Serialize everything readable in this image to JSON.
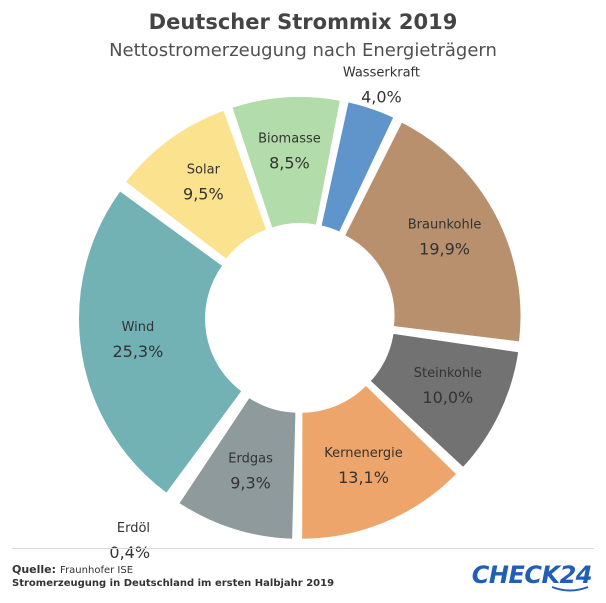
{
  "chart_data": {
    "type": "pie",
    "donut": true,
    "title": "Deutscher Strommix 2019",
    "subtitle": "Nettostromerzeugung nach Energieträgern",
    "slices": [
      {
        "label": "Braunkohle",
        "value": 19.9,
        "display": "19,9%",
        "color": "#b8906e"
      },
      {
        "label": "Steinkohle",
        "value": 10.0,
        "display": "10,0%",
        "color": "#727272"
      },
      {
        "label": "Kernenergie",
        "value": 13.1,
        "display": "13,1%",
        "color": "#eda56b"
      },
      {
        "label": "Erdgas",
        "value": 9.3,
        "display": "9,3%",
        "color": "#8f9a9c"
      },
      {
        "label": "Erdöl",
        "value": 0.4,
        "display": "0,4%",
        "color": "#3b3b3b"
      },
      {
        "label": "Wind",
        "value": 25.3,
        "display": "25,3%",
        "color": "#72b2b5"
      },
      {
        "label": "Solar",
        "value": 9.5,
        "display": "9,5%",
        "color": "#fbe28f"
      },
      {
        "label": "Biomasse",
        "value": 8.5,
        "display": "8,5%",
        "color": "#b3dcab"
      },
      {
        "label": "Wasserkraft",
        "value": 4.0,
        "display": "4,0%",
        "color": "#5f95ca"
      }
    ]
  },
  "footer": {
    "source_label": "Quelle:",
    "source_value": "Fraunhofer ISE",
    "description": "Stromerzeugung in Deutschland im ersten Halbjahr 2019",
    "logo_text": "CHECK24"
  }
}
